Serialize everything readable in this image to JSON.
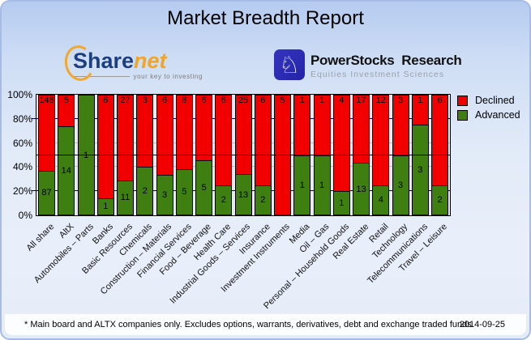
{
  "title": "Market Breadth Report",
  "logos": {
    "sharenet": {
      "name_part1": "Share",
      "name_part2": "net",
      "tagline": "your key to investing",
      "brand_blue": "#1e3f7f",
      "brand_orange": "#f0a526"
    },
    "powerstocks": {
      "icon": "knight-chess-icon",
      "icon_glyph": "♘",
      "icon_bg": "#2b2bb4",
      "title": "PowerStocks  Research",
      "subtitle": "Equities Investment Sciences"
    }
  },
  "chart_data": {
    "type": "bar",
    "stacked": true,
    "normalized_to": "100%",
    "title": "",
    "xlabel": "",
    "ylabel": "",
    "ylim": [
      0,
      100
    ],
    "y_ticks": [
      "100%",
      "80%",
      "60%",
      "40%",
      "20%",
      "0%"
    ],
    "grid": true,
    "reference_line_pct": 50,
    "legend_position": "top-right",
    "categories": [
      "All share",
      "AltX",
      "Automobiles – Parts",
      "Banks",
      "Basic Resources",
      "Chemicals",
      "Construction – Materials",
      "Financial Services",
      "Food – Beverage",
      "Health Care",
      "Industrial Goods – Services",
      "Insurance",
      "Investment Instruments",
      "Media",
      "Oil – Gas",
      "Personal – Household Goods",
      "Real Estate",
      "Retail",
      "Technology",
      "Telecommunications",
      "Travel – Leisure"
    ],
    "series": [
      {
        "name": "Declined",
        "color": "#f20000",
        "values": [
          148,
          5,
          0,
          6,
          27,
          3,
          6,
          8,
          6,
          6,
          25,
          6,
          5,
          1,
          1,
          4,
          17,
          12,
          3,
          1,
          6
        ]
      },
      {
        "name": "Advanced",
        "color": "#3f7f11",
        "values": [
          87,
          14,
          1,
          1,
          11,
          2,
          3,
          5,
          5,
          2,
          13,
          2,
          0,
          1,
          1,
          1,
          13,
          4,
          3,
          3,
          2
        ]
      }
    ]
  },
  "footer": {
    "note": "* Main board and ALTX companies only. Excludes options, warrants, derivatives, debt and exchange traded funds",
    "date": "2014-09-25"
  }
}
